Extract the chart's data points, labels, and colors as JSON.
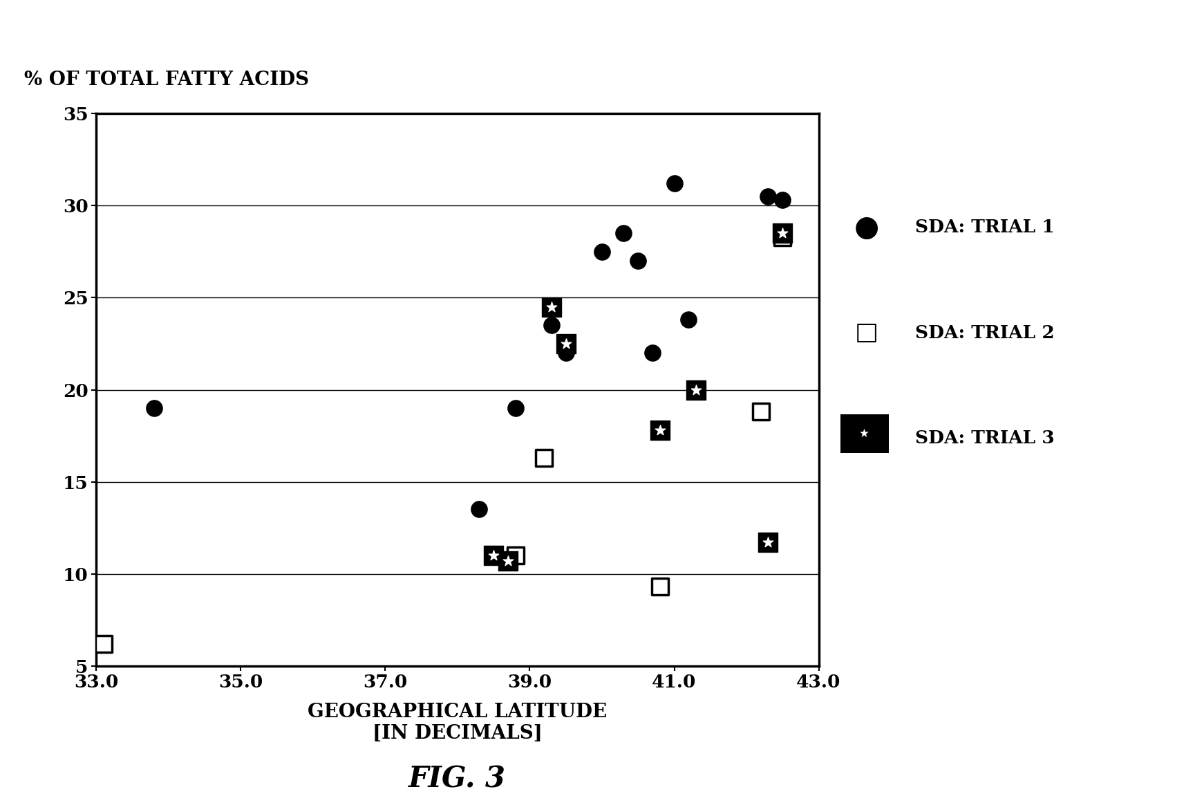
{
  "title_ylabel": "% OF TOTAL FATTY ACIDS",
  "xlabel_line1": "GEOGRAPHICAL LATITUDE",
  "xlabel_line2": "[IN DECIMALS]",
  "figure_label": "FIG. 3",
  "xlim": [
    33.0,
    43.0
  ],
  "ylim": [
    5,
    35
  ],
  "xticks": [
    33.0,
    35.0,
    37.0,
    39.0,
    41.0,
    43.0
  ],
  "yticks": [
    5,
    10,
    15,
    20,
    25,
    30,
    35
  ],
  "trial1_x": [
    33.8,
    38.3,
    38.8,
    39.3,
    39.5,
    40.0,
    40.3,
    40.5,
    40.7,
    41.0,
    41.2,
    42.3,
    42.5
  ],
  "trial1_y": [
    19.0,
    13.5,
    19.0,
    23.5,
    22.0,
    27.5,
    28.5,
    27.0,
    22.0,
    31.2,
    23.8,
    30.5,
    30.3
  ],
  "trial2_x": [
    33.1,
    38.8,
    39.2,
    40.8,
    42.2,
    42.5
  ],
  "trial2_y": [
    6.2,
    11.0,
    16.3,
    9.3,
    18.8,
    28.3
  ],
  "trial3_x": [
    38.5,
    38.7,
    39.3,
    39.5,
    40.8,
    41.3,
    42.3,
    42.5
  ],
  "trial3_y": [
    11.0,
    10.7,
    24.5,
    22.5,
    17.8,
    20.0,
    11.7,
    28.5
  ],
  "legend_labels": [
    "SDA: TRIAL 1",
    "SDA: TRIAL 2",
    "SDA: TRIAL 3"
  ],
  "background_color": "#ffffff",
  "marker_color": "#000000"
}
